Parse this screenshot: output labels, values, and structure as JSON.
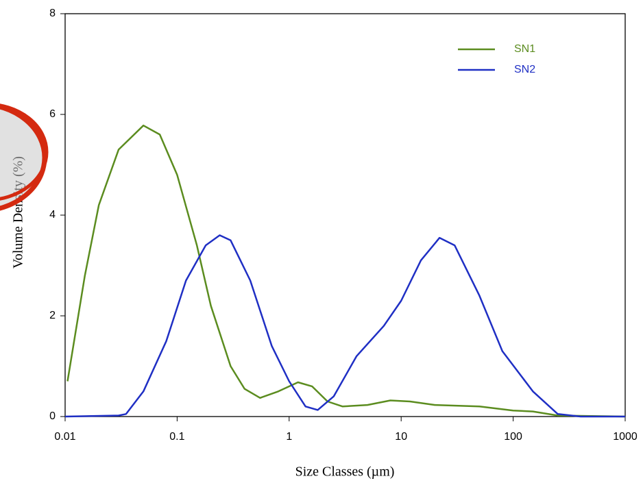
{
  "chart_data": {
    "type": "line",
    "xlabel": "Size Classes (µm)",
    "ylabel": "Volume Density (%)",
    "xscale": "log",
    "xlim": [
      0.01,
      1000
    ],
    "xticks": [
      0.01,
      0.1,
      1,
      10,
      100,
      1000
    ],
    "ylim": [
      0,
      8
    ],
    "yticks": [
      0,
      2,
      4,
      6,
      8
    ],
    "legend": "upper right",
    "series": [
      {
        "name": "SN1",
        "color": "#5b8c1f",
        "x": [
          0.0105,
          0.015,
          0.02,
          0.03,
          0.05,
          0.07,
          0.1,
          0.15,
          0.2,
          0.3,
          0.4,
          0.55,
          0.8,
          1.2,
          1.6,
          2.2,
          3,
          5,
          8,
          12,
          20,
          50,
          100,
          150,
          250,
          500,
          1000
        ],
        "values": [
          0.7,
          2.8,
          4.2,
          5.3,
          5.78,
          5.6,
          4.8,
          3.4,
          2.2,
          1.0,
          0.55,
          0.37,
          0.5,
          0.68,
          0.6,
          0.3,
          0.2,
          0.23,
          0.32,
          0.3,
          0.23,
          0.2,
          0.12,
          0.1,
          0.02,
          0.01,
          0
        ]
      },
      {
        "name": "SN2",
        "color": "#1f2fc4",
        "x": [
          0.01,
          0.03,
          0.035,
          0.05,
          0.08,
          0.12,
          0.18,
          0.24,
          0.3,
          0.45,
          0.7,
          1,
          1.4,
          1.8,
          2.5,
          4,
          7,
          10,
          15,
          22,
          30,
          50,
          80,
          150,
          250,
          400,
          1000
        ],
        "values": [
          0,
          0.02,
          0.05,
          0.5,
          1.5,
          2.7,
          3.4,
          3.6,
          3.5,
          2.7,
          1.4,
          0.7,
          0.2,
          0.13,
          0.4,
          1.2,
          1.8,
          2.3,
          3.1,
          3.55,
          3.4,
          2.4,
          1.3,
          0.5,
          0.05,
          0,
          0
        ]
      }
    ]
  }
}
